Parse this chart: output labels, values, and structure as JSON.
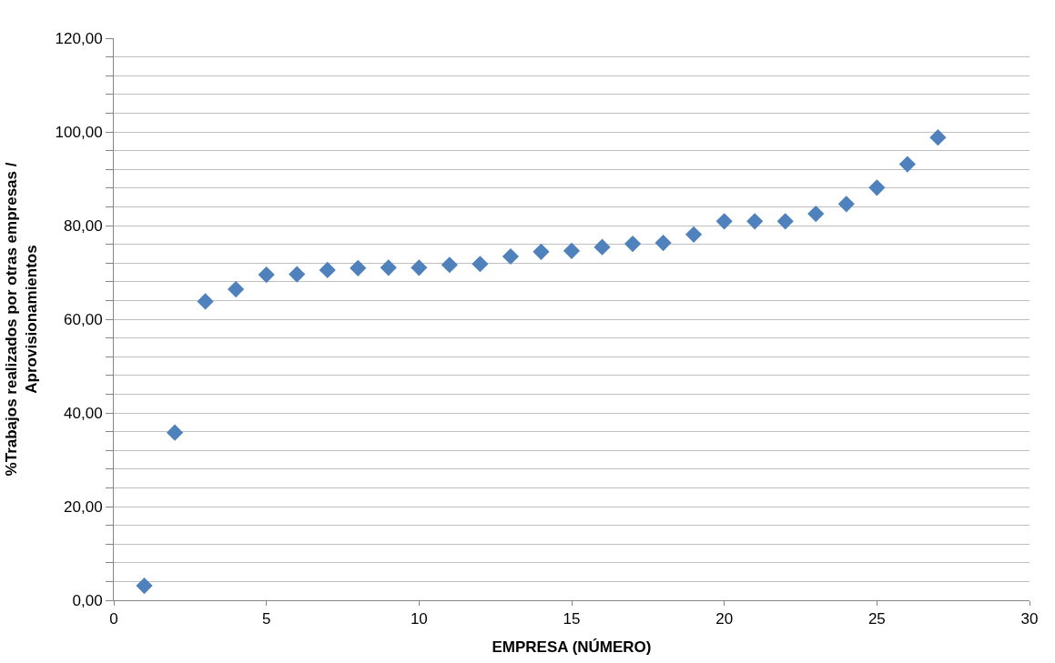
{
  "chart_data": {
    "type": "scatter",
    "xlabel": "EMPRESA (NÚMERO)",
    "ylabel": "%Trabajos realizados por otras empresas / Aprovisionamientos",
    "x": [
      1,
      2,
      3,
      4,
      5,
      6,
      7,
      8,
      9,
      10,
      11,
      12,
      13,
      14,
      15,
      16,
      17,
      18,
      19,
      20,
      21,
      22,
      23,
      24,
      25,
      26,
      27
    ],
    "series": [
      {
        "color": "#4f81bd",
        "values": [
          3.1,
          35.8,
          63.8,
          66.4,
          69.5,
          69.6,
          70.5,
          70.9,
          71.0,
          71.0,
          71.6,
          71.8,
          73.4,
          74.4,
          74.6,
          75.4,
          76.1,
          76.3,
          78.1,
          80.9,
          80.9,
          80.9,
          82.5,
          84.6,
          88.1,
          93.1,
          98.8
        ]
      }
    ],
    "marker": "diamond",
    "xlim": [
      0,
      30
    ],
    "xticks": [
      0,
      5,
      10,
      15,
      20,
      25,
      30
    ],
    "ylim": [
      0,
      120
    ],
    "yticks": [
      {
        "value": 0,
        "label": "0,00"
      },
      {
        "value": 4,
        "label": null
      },
      {
        "value": 8,
        "label": null
      },
      {
        "value": 12,
        "label": null
      },
      {
        "value": 16,
        "label": null
      },
      {
        "value": 20,
        "label": "20,00"
      },
      {
        "value": 24,
        "label": null
      },
      {
        "value": 28,
        "label": null
      },
      {
        "value": 32,
        "label": null
      },
      {
        "value": 36,
        "label": null
      },
      {
        "value": 40,
        "label": "40,00"
      },
      {
        "value": 44,
        "label": null
      },
      {
        "value": 48,
        "label": null
      },
      {
        "value": 52,
        "label": null
      },
      {
        "value": 56,
        "label": null
      },
      {
        "value": 60,
        "label": "60,00"
      },
      {
        "value": 64,
        "label": null
      },
      {
        "value": 68,
        "label": null
      },
      {
        "value": 72,
        "label": null
      },
      {
        "value": 76,
        "label": null
      },
      {
        "value": 80,
        "label": "80,00"
      },
      {
        "value": 84,
        "label": null
      },
      {
        "value": 88,
        "label": null
      },
      {
        "value": 92,
        "label": null
      },
      {
        "value": 96,
        "label": null
      },
      {
        "value": 100,
        "label": "100,00"
      },
      {
        "value": 104,
        "label": null
      },
      {
        "value": 108,
        "label": null
      },
      {
        "value": 112,
        "label": null
      },
      {
        "value": 116,
        "label": null
      },
      {
        "value": 120,
        "label": "120,00"
      }
    ],
    "grid": "y",
    "legend": false
  }
}
